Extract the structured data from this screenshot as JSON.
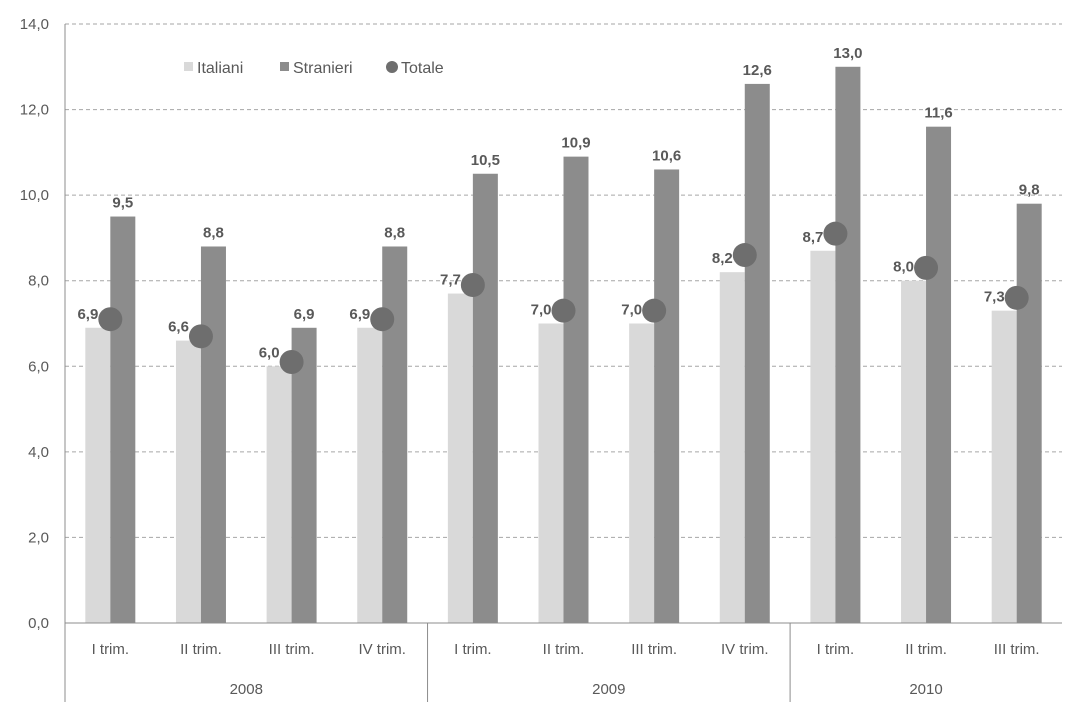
{
  "chart_data": {
    "type": "bar",
    "ylim": [
      0,
      14
    ],
    "yticks": [
      "0,0",
      "2,0",
      "4,0",
      "6,0",
      "8,0",
      "10,0",
      "12,0",
      "14,0"
    ],
    "grid": true,
    "legend_position": "top-left",
    "categories": [
      "I trim.",
      "II trim.",
      "III trim.",
      "IV trim.",
      "I trim.",
      "II trim.",
      "III trim.",
      "IV trim.",
      "I trim.",
      "II trim.",
      "III trim."
    ],
    "groups": [
      {
        "label": "2008",
        "count": 4
      },
      {
        "label": "2009",
        "count": 4
      },
      {
        "label": "2010",
        "count": 3
      }
    ],
    "series": [
      {
        "name": "Italiani",
        "kind": "bar",
        "color": "#d9d9d9",
        "values": [
          6.9,
          6.6,
          6.0,
          6.9,
          7.7,
          7.0,
          7.0,
          8.2,
          8.7,
          8.0,
          7.3
        ],
        "labels": [
          "6,9",
          "6,6",
          "6,0",
          "6,9",
          "7,7",
          "7,0",
          "7,0",
          "8,2",
          "8,7",
          "8,0",
          "7,3"
        ]
      },
      {
        "name": "Stranieri",
        "kind": "bar",
        "color": "#8c8c8c",
        "values": [
          9.5,
          8.8,
          6.9,
          8.8,
          10.5,
          10.9,
          10.6,
          12.6,
          13.0,
          11.6,
          9.8
        ],
        "labels": [
          "9,5",
          "8,8",
          "6,9",
          "8,8",
          "10,5",
          "10,9",
          "10,6",
          "12,6",
          "13,0",
          "11,6",
          "9,8"
        ]
      },
      {
        "name": "Totale",
        "kind": "marker",
        "color": "#6e6e6e",
        "values": [
          7.1,
          6.7,
          6.1,
          7.1,
          7.9,
          7.3,
          7.3,
          8.6,
          9.1,
          8.3,
          7.6
        ]
      }
    ]
  }
}
